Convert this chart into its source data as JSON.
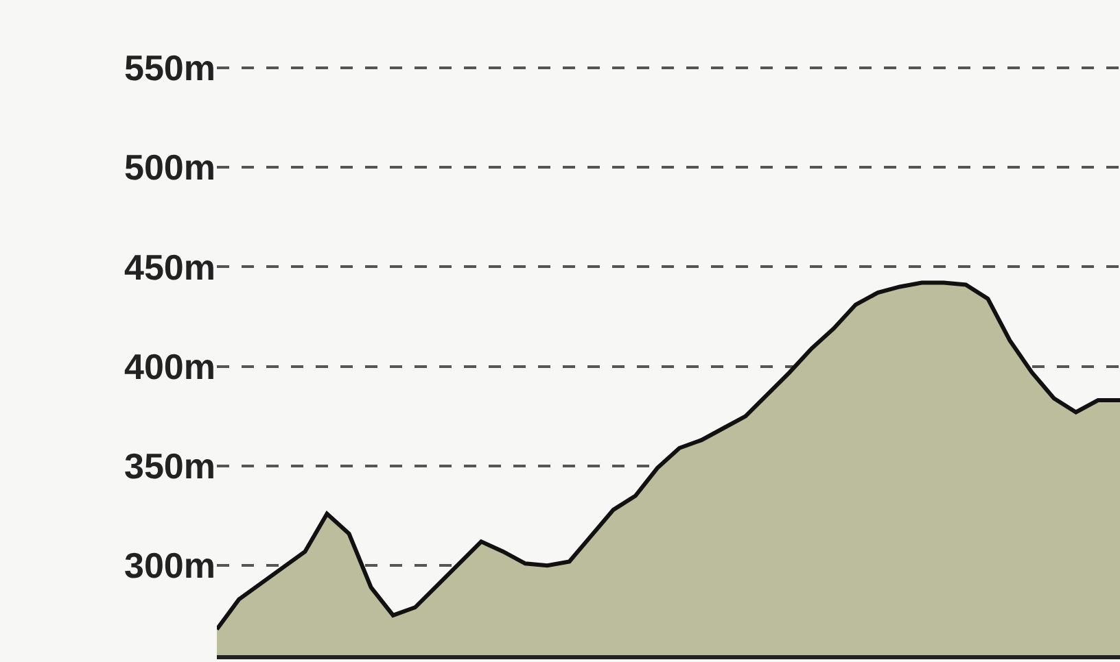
{
  "chart_data": {
    "type": "area",
    "categories": [
      null,
      null,
      null,
      null,
      null,
      null,
      null,
      null,
      null,
      null,
      null,
      null,
      null,
      null,
      null,
      null,
      null,
      null,
      null,
      null,
      null,
      null,
      null,
      null,
      null,
      null,
      null,
      null,
      null,
      null,
      null,
      null,
      null,
      null,
      null,
      null,
      null,
      null,
      null,
      null,
      null,
      null
    ],
    "series": [
      {
        "color": "#bcbd9c",
        "values": [
          268,
          283,
          291,
          299,
          307,
          326,
          316,
          289,
          275,
          279,
          290,
          301,
          312,
          307,
          301,
          300,
          302,
          315,
          328,
          335,
          349,
          359,
          363,
          369,
          375,
          386,
          397,
          409,
          419,
          431,
          437,
          440,
          442,
          442,
          441,
          434,
          413,
          397,
          384,
          377,
          383,
          383
        ]
      }
    ],
    "ylim": [
      255,
      584
    ],
    "yticks": [
      {
        "value": 300,
        "label": "300m"
      },
      {
        "value": 350,
        "label": "350m"
      },
      {
        "value": 400,
        "label": "400m"
      },
      {
        "value": 450,
        "label": "450m"
      },
      {
        "value": 500,
        "label": "500m"
      },
      {
        "value": 550,
        "label": "550m"
      }
    ],
    "grid": "y",
    "tick_labels": "y"
  }
}
